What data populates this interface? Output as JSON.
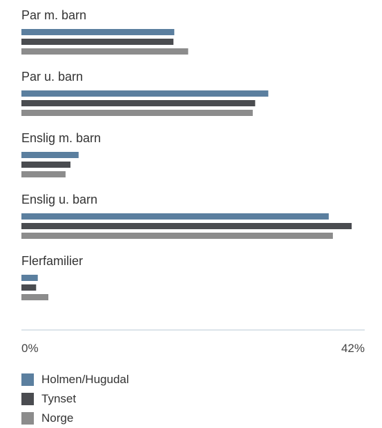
{
  "chart_data": {
    "type": "bar",
    "orientation": "horizontal",
    "categories": [
      "Par m. barn",
      "Par u. barn",
      "Enslig m. barn",
      "Enslig u. barn",
      "Flerfamilier"
    ],
    "series": [
      {
        "name": "Holmen/Hugudal",
        "color": "#5b7f9f",
        "values": [
          18.7,
          30.2,
          7.0,
          37.6,
          2.0
        ]
      },
      {
        "name": "Tynset",
        "color": "#4a4c50",
        "values": [
          18.6,
          28.6,
          6.0,
          40.4,
          1.8
        ]
      },
      {
        "name": "Norge",
        "color": "#8c8c8c",
        "values": [
          20.4,
          28.3,
          5.4,
          38.1,
          3.3
        ]
      }
    ],
    "xlim": [
      0,
      42
    ],
    "x_tick_labels": [
      "0%",
      "42%"
    ],
    "legend_position": "bottom-left",
    "grid": false
  }
}
